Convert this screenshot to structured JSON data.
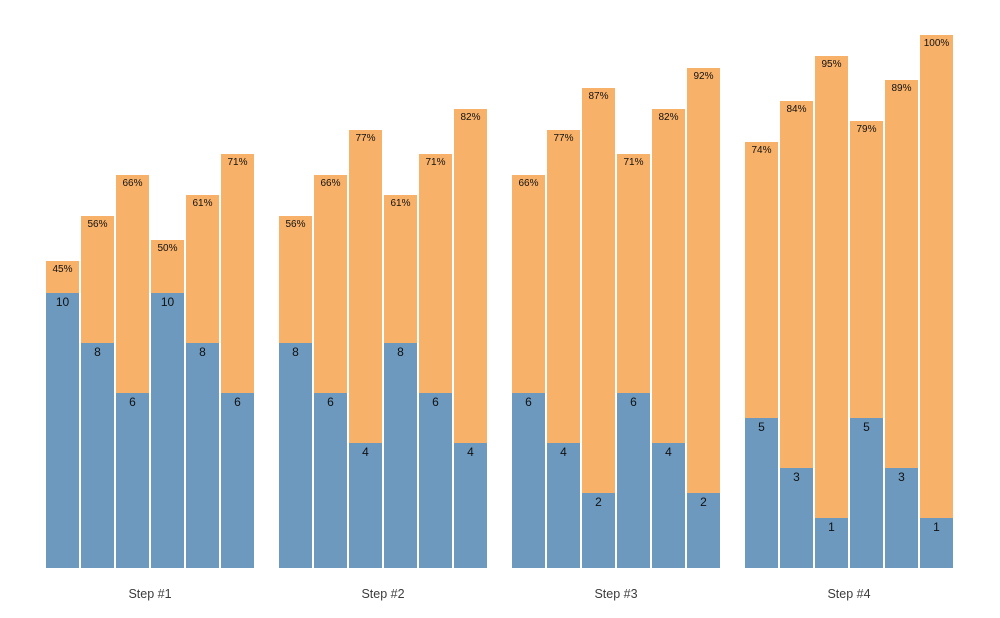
{
  "chart_data": {
    "type": "bar",
    "variant": "stacked",
    "title": "",
    "xlabel": "",
    "ylabel": "",
    "grid": false,
    "legend": null,
    "background": "#ffffff",
    "colors": {
      "bottom_segment": "#6D99BF",
      "top_segment": "#F8B169",
      "bar_label_text": "#111111",
      "axis_label_text": "#3c3c3c"
    },
    "x_categories": [
      "Step #1",
      "Step #2",
      "Step #3",
      "Step #4"
    ],
    "bars_per_group": 6,
    "groups": [
      {
        "label": "Step #1",
        "bars": [
          {
            "value": 10,
            "pct": 45
          },
          {
            "value": 8,
            "pct": 56
          },
          {
            "value": 6,
            "pct": 66
          },
          {
            "value": 10,
            "pct": 50
          },
          {
            "value": 8,
            "pct": 61
          },
          {
            "value": 6,
            "pct": 71
          }
        ]
      },
      {
        "label": "Step #2",
        "bars": [
          {
            "value": 8,
            "pct": 56
          },
          {
            "value": 6,
            "pct": 66
          },
          {
            "value": 4,
            "pct": 77
          },
          {
            "value": 8,
            "pct": 61
          },
          {
            "value": 6,
            "pct": 71
          },
          {
            "value": 4,
            "pct": 82
          }
        ]
      },
      {
        "label": "Step #3",
        "bars": [
          {
            "value": 6,
            "pct": 66
          },
          {
            "value": 4,
            "pct": 77
          },
          {
            "value": 2,
            "pct": 87
          },
          {
            "value": 6,
            "pct": 71
          },
          {
            "value": 4,
            "pct": 82
          },
          {
            "value": 2,
            "pct": 92
          }
        ]
      },
      {
        "label": "Step #4",
        "bars": [
          {
            "value": 5,
            "pct": 74
          },
          {
            "value": 3,
            "pct": 84
          },
          {
            "value": 1,
            "pct": 95
          },
          {
            "value": 5,
            "pct": 79
          },
          {
            "value": 3,
            "pct": 89
          },
          {
            "value": 1,
            "pct": 100
          }
        ]
      }
    ]
  }
}
